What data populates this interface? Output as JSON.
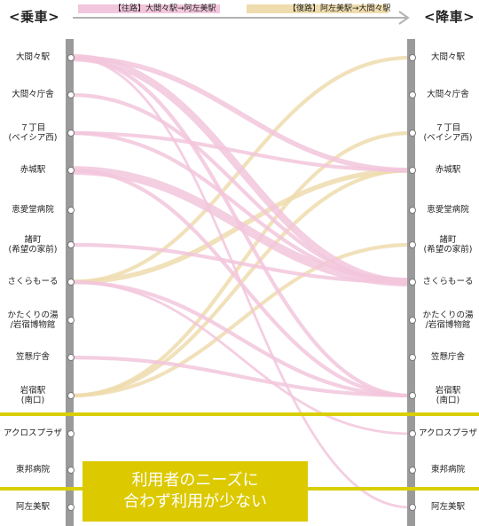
{
  "header": {
    "boarding": "<乗車>",
    "alighting": "<降車>"
  },
  "legend": {
    "outbound": "【往路】大間々駅→阿左美駅",
    "inbound": "【復路】阿左美駅→大間々駅"
  },
  "stations": [
    "大間々駅",
    "大間々庁舎",
    "７丁目\n(ベイシア西)",
    "赤城駅",
    "恵愛堂病院",
    "諸町\n(希望の家前)",
    "さくらもーる",
    "かたくりの湯\n/岩宿博物館",
    "笠懸庁舎",
    "岩宿駅\n(南口)",
    "アクロスプラザ",
    "東邦病院",
    "阿左美駅"
  ],
  "callout": "利用者のニーズに\n合わず利用が少ない",
  "colors": {
    "outbound": "#f2c6dc",
    "inbound": "#efdcae",
    "highlight": "#d9cf00",
    "rail": "#9a9a9a"
  },
  "flows": {
    "outbound": [
      {
        "from": 0,
        "to": 3,
        "weight": 4
      },
      {
        "from": 0,
        "to": 6,
        "weight": 6
      },
      {
        "from": 0,
        "to": 9,
        "weight": 3
      },
      {
        "from": 0,
        "to": 12,
        "weight": 2
      },
      {
        "from": 1,
        "to": 6,
        "weight": 3
      },
      {
        "from": 2,
        "to": 3,
        "weight": 3
      },
      {
        "from": 2,
        "to": 6,
        "weight": 3
      },
      {
        "from": 3,
        "to": 6,
        "weight": 7
      },
      {
        "from": 3,
        "to": 9,
        "weight": 3
      },
      {
        "from": 5,
        "to": 6,
        "weight": 3
      },
      {
        "from": 6,
        "to": 9,
        "weight": 3
      },
      {
        "from": 6,
        "to": 10,
        "weight": 2
      },
      {
        "from": 8,
        "to": 9,
        "weight": 3
      }
    ],
    "inbound": [
      {
        "from": 6,
        "to": 0,
        "weight": 3
      },
      {
        "from": 6,
        "to": 3,
        "weight": 4
      },
      {
        "from": 9,
        "to": 2,
        "weight": 3
      },
      {
        "from": 9,
        "to": 3,
        "weight": 3
      },
      {
        "from": 9,
        "to": 5,
        "weight": 3
      }
    ]
  }
}
